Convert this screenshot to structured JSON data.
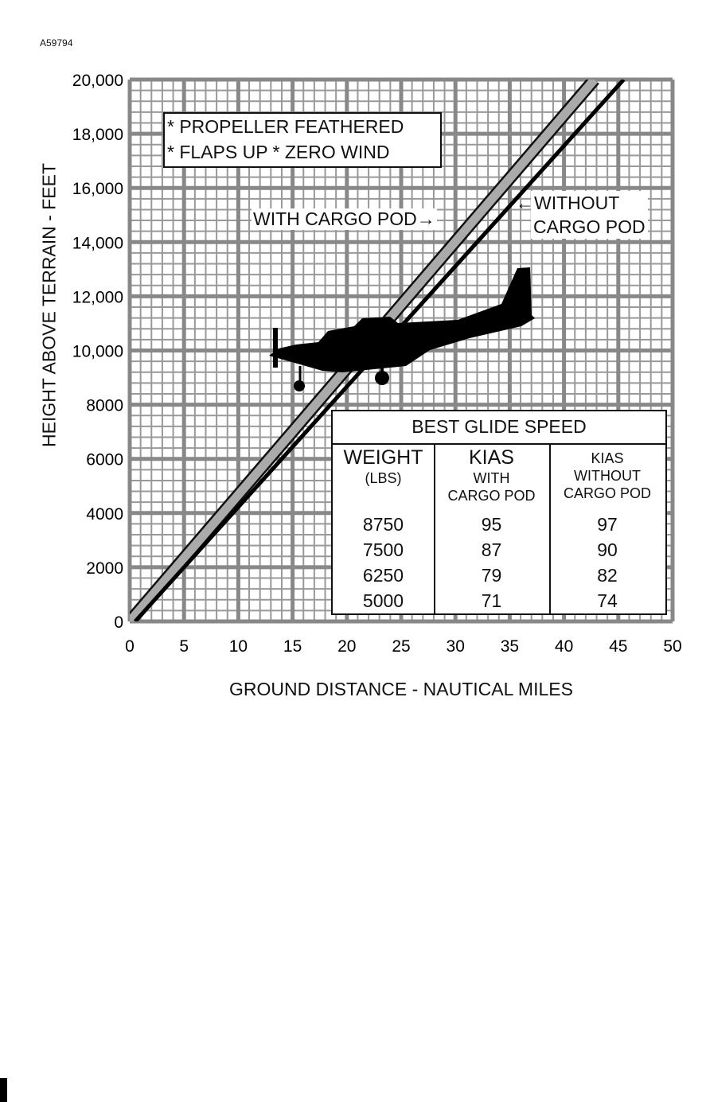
{
  "figure_id": "A59794",
  "chart_data": {
    "type": "line",
    "title": "",
    "xlabel": "GROUND DISTANCE - NAUTICAL MILES",
    "ylabel": "HEIGHT ABOVE TERRAIN - FEET",
    "xlim": [
      0,
      50
    ],
    "ylim": [
      0,
      20000
    ],
    "x_ticks": [
      0,
      5,
      10,
      15,
      20,
      25,
      30,
      35,
      40,
      45,
      50
    ],
    "y_ticks": [
      0,
      2000,
      4000,
      6000,
      8000,
      10000,
      12000,
      14000,
      16000,
      18000,
      20000
    ],
    "y_tick_labels": [
      "0",
      "2000",
      "4000",
      "6000",
      "8000",
      "10,000",
      "12,000",
      "14,000",
      "16,000",
      "18,000",
      "20,000"
    ],
    "grid": true,
    "series": [
      {
        "name": "WITH CARGO POD",
        "style": "gray-band",
        "x": [
          0,
          42.8
        ],
        "y": [
          0,
          20000
        ]
      },
      {
        "name": "WITHOUT CARGO POD",
        "style": "black-line",
        "x": [
          0.5,
          45.5
        ],
        "y": [
          0,
          20000
        ]
      }
    ],
    "annotations": {
      "conditions": [
        "* PROPELLER FEATHERED",
        "* FLAPS UP  * ZERO WIND"
      ],
      "with_label": "WITH CARGO POD",
      "without_label": [
        "WITHOUT",
        "CARGO POD"
      ]
    },
    "table": {
      "title": "BEST GLIDE SPEED",
      "headers": [
        [
          "WEIGHT",
          "(LBS)"
        ],
        [
          "KIAS",
          "WITH",
          "CARGO POD"
        ],
        [
          "KIAS",
          "WITHOUT",
          "CARGO POD"
        ]
      ],
      "rows": [
        [
          "8750",
          "95",
          "97"
        ],
        [
          "7500",
          "87",
          "90"
        ],
        [
          "6250",
          "79",
          "82"
        ],
        [
          "5000",
          "71",
          "74"
        ]
      ]
    }
  }
}
